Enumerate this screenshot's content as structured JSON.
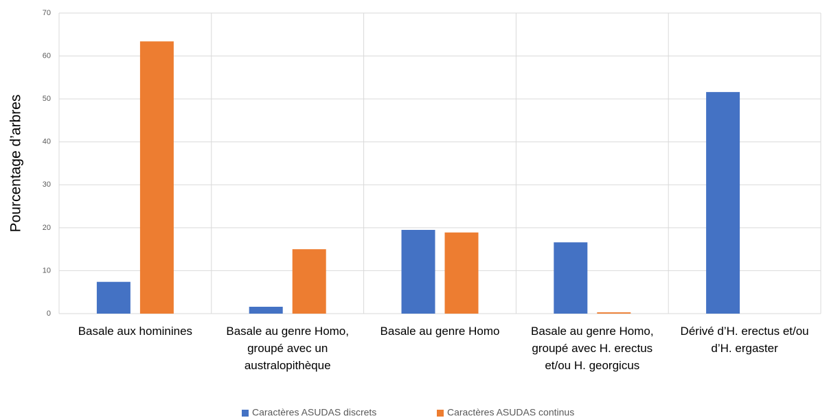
{
  "chart_data": {
    "type": "bar",
    "y_label": "Pourcentage d’arbres",
    "categories": [
      "Basale aux hominines",
      "Basale au genre Homo, groupé avec un australopithèque",
      "Basale au genre Homo",
      "Basale au genre Homo, groupé avec H. erectus et/ou H. georgicus",
      "Dérivé d’H. erectus et/ou d’H. ergaster"
    ],
    "series": [
      {
        "name": "Caractères ASUDAS discrets",
        "color": "#4472c4",
        "values": [
          7.4,
          1.6,
          19.5,
          16.6,
          51.6
        ]
      },
      {
        "name": "Caractères ASUDAS continus",
        "color": "#ed7d31",
        "values": [
          63.4,
          15,
          18.9,
          0.3,
          0
        ]
      }
    ],
    "ylim": [
      0,
      70
    ],
    "yticks": [
      0,
      10,
      20,
      30,
      40,
      50,
      60,
      70
    ],
    "grid": true,
    "legend": "bottom"
  }
}
